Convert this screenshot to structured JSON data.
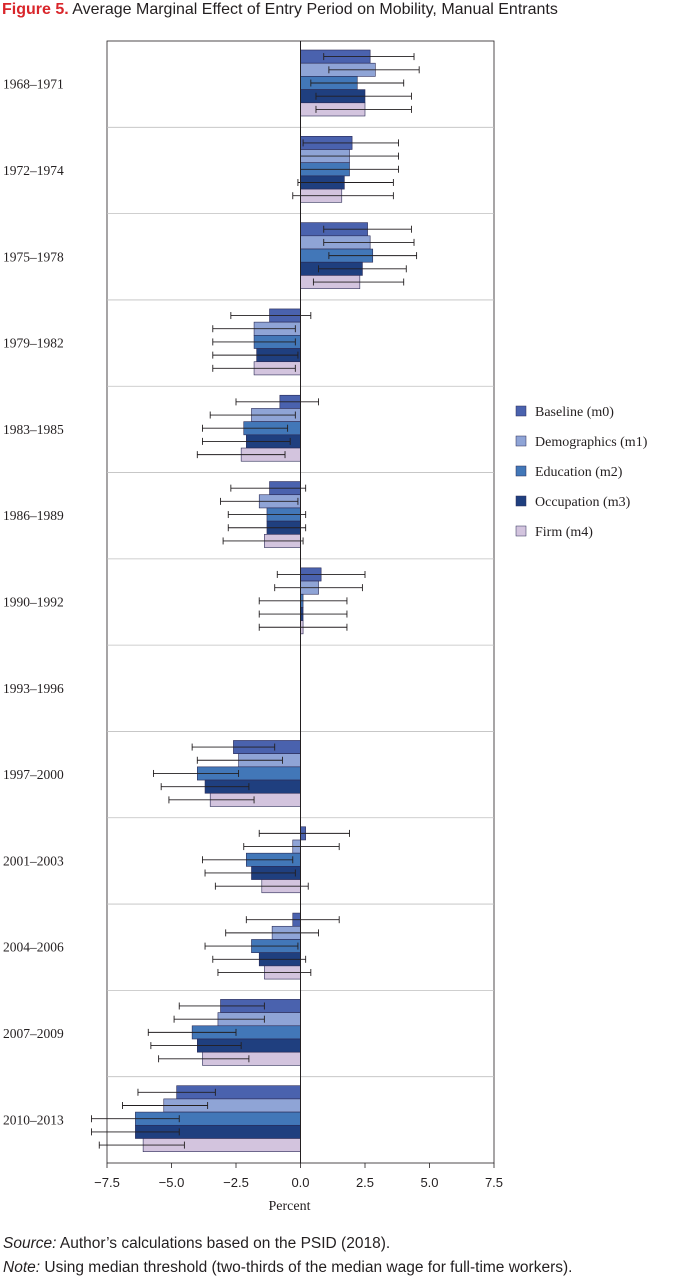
{
  "figure": {
    "label": "Figure 5.",
    "title": "Average Marginal Effect of Entry Period on Mobility, Manual Entrants"
  },
  "source": {
    "label": "Source:",
    "text": "Author’s calculations based on the PSID (2018)."
  },
  "note": {
    "label": "Note:",
    "text": "Using median threshold (two-thirds of the median wage for full-time workers)."
  },
  "chart_data": {
    "type": "bar",
    "orientation": "horizontal",
    "xlabel": "Percent",
    "xlim": [
      -7.5,
      7.5
    ],
    "xticks": [
      -7.5,
      -5.0,
      -2.5,
      0.0,
      2.5,
      5.0,
      7.5
    ],
    "xtick_labels": [
      "−7.5",
      "−5.0",
      "−2.5",
      "0.0",
      "2.5",
      "5.0",
      "7.5"
    ],
    "legend_position": "right",
    "categories": [
      "1968–1971",
      "1972–1974",
      "1975–1978",
      "1979–1982",
      "1983–1985",
      "1986–1989",
      "1990–1992",
      "1993–1996",
      "1997–2000",
      "2001–2003",
      "2004–2006",
      "2007–2009",
      "2010–2013"
    ],
    "series": [
      {
        "name": "Baseline (m0)",
        "color": "#4a62ae",
        "values": [
          2.7,
          2.0,
          2.6,
          -1.2,
          -0.8,
          -1.2,
          0.8,
          null,
          -2.6,
          0.2,
          -0.3,
          -3.1,
          -4.8
        ],
        "ci_low": [
          0.9,
          0.1,
          0.9,
          -2.7,
          -2.5,
          -2.7,
          -0.9,
          null,
          -4.2,
          -1.6,
          -2.1,
          -4.7,
          -6.3
        ],
        "ci_high": [
          4.4,
          3.8,
          4.3,
          0.4,
          0.7,
          0.2,
          2.5,
          null,
          -1.0,
          1.9,
          1.5,
          -1.4,
          -3.3
        ]
      },
      {
        "name": "Demographics (m1)",
        "color": "#8fa4d6",
        "values": [
          2.9,
          1.9,
          2.7,
          -1.8,
          -1.9,
          -1.6,
          0.7,
          null,
          -2.4,
          -0.3,
          -1.1,
          -3.2,
          -5.3
        ],
        "ci_low": [
          1.1,
          0.0,
          0.9,
          -3.4,
          -3.5,
          -3.1,
          -1.0,
          null,
          -4.0,
          -2.2,
          -2.9,
          -4.9,
          -6.9
        ],
        "ci_high": [
          4.6,
          3.8,
          4.4,
          -0.2,
          -0.2,
          -0.1,
          2.4,
          null,
          -0.7,
          1.5,
          0.7,
          -1.4,
          -3.6
        ]
      },
      {
        "name": "Education (m2)",
        "color": "#4277b8",
        "values": [
          2.2,
          1.9,
          2.8,
          -1.8,
          -2.2,
          -1.3,
          0.1,
          null,
          -4.0,
          -2.1,
          -1.9,
          -4.2,
          -6.4
        ],
        "ci_low": [
          0.4,
          0.0,
          1.1,
          -3.4,
          -3.8,
          -2.8,
          -1.6,
          null,
          -5.7,
          -3.8,
          -3.7,
          -5.9,
          -8.1
        ],
        "ci_high": [
          4.0,
          3.8,
          4.5,
          -0.2,
          -0.5,
          0.2,
          1.8,
          null,
          -2.4,
          -0.3,
          -0.1,
          -2.5,
          -4.7
        ]
      },
      {
        "name": "Occupation (m3)",
        "color": "#1f3f7f",
        "values": [
          2.5,
          1.7,
          2.4,
          -1.7,
          -2.1,
          -1.3,
          0.1,
          null,
          -3.7,
          -1.9,
          -1.6,
          -4.0,
          -6.4
        ],
        "ci_low": [
          0.6,
          -0.1,
          0.7,
          -3.4,
          -3.8,
          -2.8,
          -1.6,
          null,
          -5.4,
          -3.7,
          -3.4,
          -5.8,
          -8.1
        ],
        "ci_high": [
          4.3,
          3.6,
          4.1,
          -0.1,
          -0.4,
          0.2,
          1.8,
          null,
          -2.0,
          -0.2,
          0.2,
          -2.3,
          -4.7
        ]
      },
      {
        "name": "Firm (m4)",
        "color": "#d3c4de",
        "values": [
          2.5,
          1.6,
          2.3,
          -1.8,
          -2.3,
          -1.4,
          0.1,
          null,
          -3.5,
          -1.5,
          -1.4,
          -3.8,
          -6.1
        ],
        "ci_low": [
          0.6,
          -0.3,
          0.5,
          -3.4,
          -4.0,
          -3.0,
          -1.6,
          null,
          -5.1,
          -3.3,
          -3.2,
          -5.5,
          -7.8
        ],
        "ci_high": [
          4.3,
          3.6,
          4.0,
          -0.2,
          -0.6,
          0.1,
          1.8,
          null,
          -1.8,
          0.3,
          0.4,
          -2.0,
          -4.5
        ]
      }
    ]
  }
}
